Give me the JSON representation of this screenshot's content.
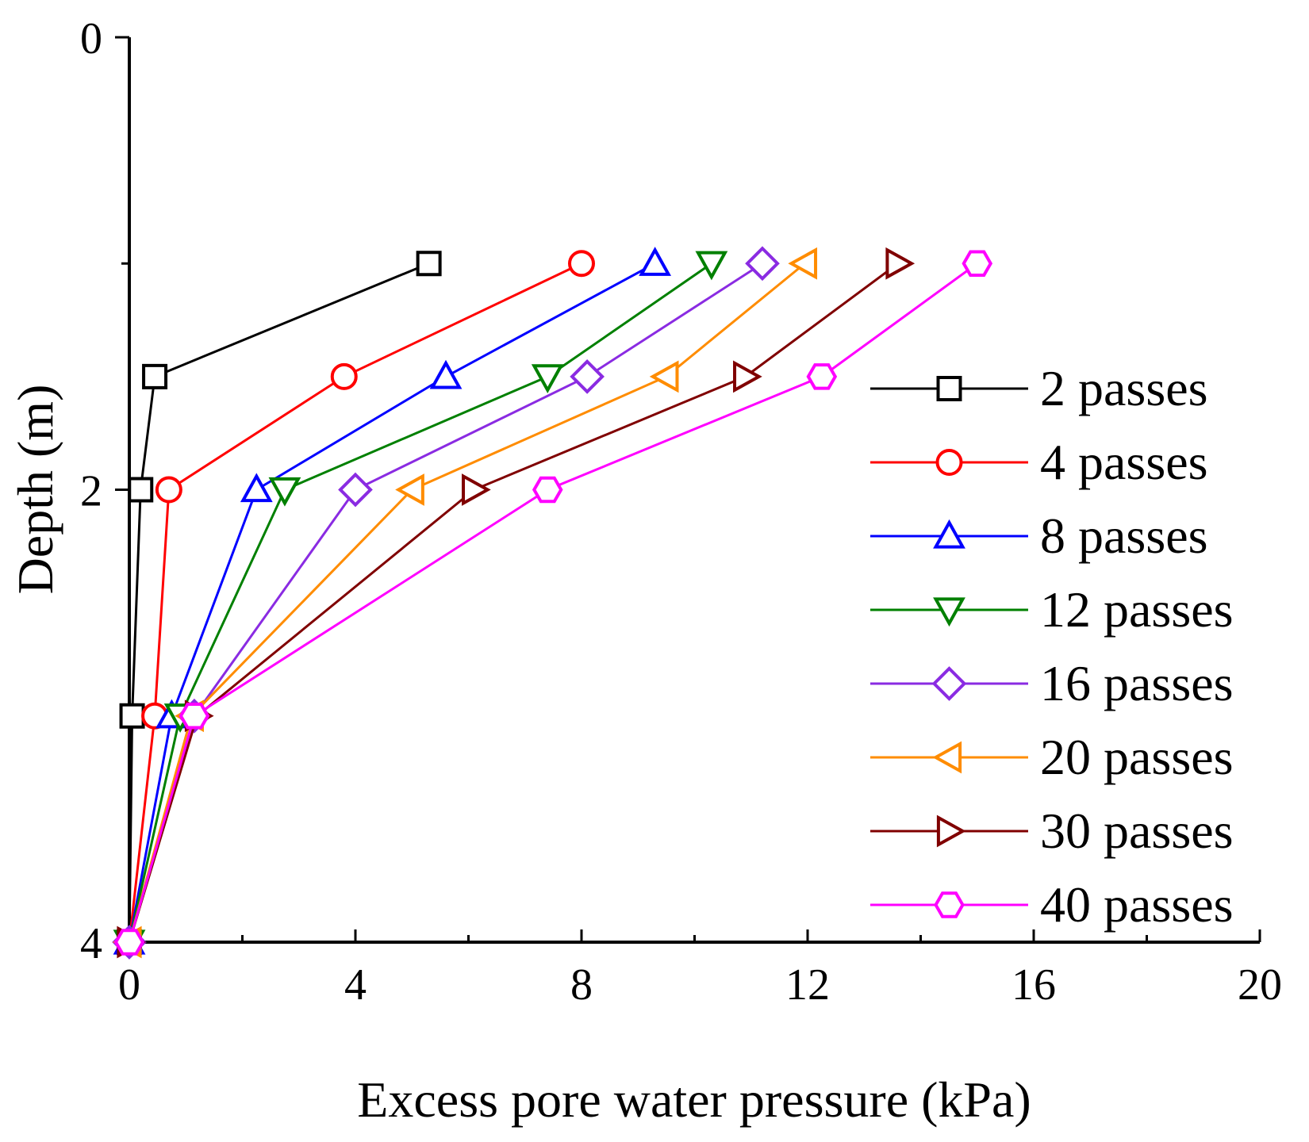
{
  "chart_data": {
    "type": "line",
    "title": "",
    "xlabel": "Excess pore water pressure (kPa)",
    "ylabel": "Depth (m)",
    "xlim": [
      0,
      20
    ],
    "ylim": [
      4,
      0
    ],
    "x_ticks": [
      "0",
      "4",
      "8",
      "12",
      "16",
      "20"
    ],
    "y_ticks": [
      "0",
      "2",
      "4"
    ],
    "y_inverted": true,
    "grid": false,
    "legend_position": "right",
    "depths": [
      1,
      1.5,
      2,
      3,
      4
    ],
    "series": [
      {
        "name": "2 passes",
        "color": "#000000",
        "marker": "square",
        "x": [
          5.3,
          0.45,
          0.2,
          0.05,
          0.0
        ]
      },
      {
        "name": "4 passes",
        "color": "#ff0000",
        "marker": "circle",
        "x": [
          8.0,
          3.8,
          0.7,
          0.45,
          0.0
        ]
      },
      {
        "name": "8 passes",
        "color": "#0000ff",
        "marker": "triangle-up",
        "x": [
          9.3,
          5.6,
          2.25,
          0.75,
          0.0
        ]
      },
      {
        "name": "12 passes",
        "color": "#008000",
        "marker": "triangle-down",
        "x": [
          10.3,
          7.4,
          2.75,
          0.9,
          0.0
        ]
      },
      {
        "name": "16 passes",
        "color": "#8a2be2",
        "marker": "diamond",
        "x": [
          11.2,
          8.1,
          4.0,
          1.15,
          0.0
        ]
      },
      {
        "name": "20 passes",
        "color": "#ff8c00",
        "marker": "triangle-left",
        "x": [
          11.95,
          9.5,
          5.0,
          1.1,
          0.0
        ]
      },
      {
        "name": "30 passes",
        "color": "#800000",
        "marker": "triangle-right",
        "x": [
          13.6,
          10.9,
          6.1,
          1.2,
          0.0
        ]
      },
      {
        "name": "40 passes",
        "color": "#ff00ff",
        "marker": "hexagon",
        "x": [
          15.0,
          12.25,
          7.4,
          1.15,
          0.0
        ]
      }
    ]
  }
}
